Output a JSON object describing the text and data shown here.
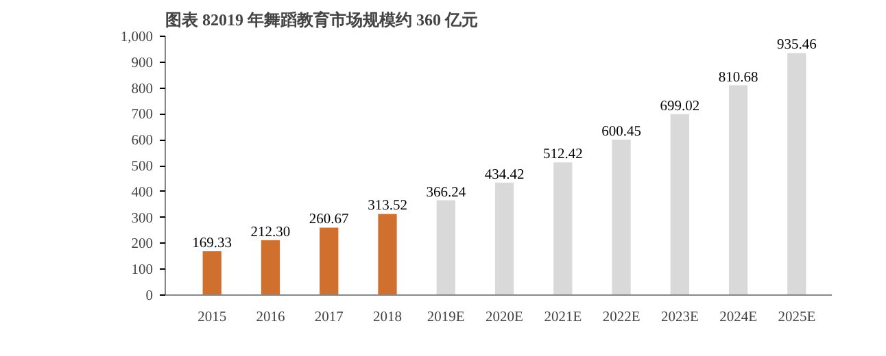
{
  "chart_data": {
    "type": "bar",
    "title": "图表 82019 年舞蹈教育市场规模约 360 亿元",
    "categories": [
      "2015",
      "2016",
      "2017",
      "2018",
      "2019E",
      "2020E",
      "2021E",
      "2022E",
      "2023E",
      "2024E",
      "2025E"
    ],
    "values": [
      169.33,
      212.3,
      260.67,
      313.52,
      366.24,
      434.42,
      512.42,
      600.45,
      699.02,
      810.68,
      935.46
    ],
    "value_labels": [
      "169.33",
      "212.30",
      "260.67",
      "313.52",
      "366.24",
      "434.42",
      "512.42",
      "600.45",
      "699.02",
      "810.68",
      "935.46"
    ],
    "colors": [
      "#d0702f",
      "#d0702f",
      "#d0702f",
      "#d0702f",
      "#d9d9d9",
      "#d9d9d9",
      "#d9d9d9",
      "#d9d9d9",
      "#d9d9d9",
      "#d9d9d9",
      "#d9d9d9"
    ],
    "ylim": [
      0,
      1000
    ],
    "yticks": [
      0,
      100,
      200,
      300,
      400,
      500,
      600,
      700,
      800,
      900,
      {
        "value": 1000,
        "label": "1,000"
      }
    ],
    "grid": false
  }
}
